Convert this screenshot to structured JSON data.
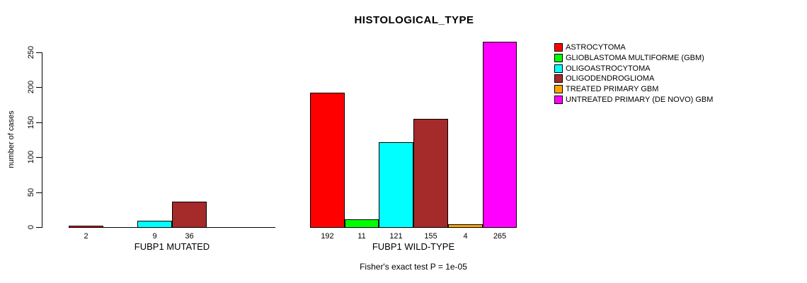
{
  "chart_data": {
    "type": "bar",
    "title": "HISTOLOGICAL_TYPE",
    "ylabel": "number of cases",
    "ylim": [
      0,
      250
    ],
    "yticks": [
      0,
      50,
      100,
      150,
      200,
      250
    ],
    "grid": false,
    "legend_position": "right-outside",
    "categories": [
      "FUBP1 MUTATED",
      "FUBP1 WILD-TYPE"
    ],
    "series": [
      {
        "name": "ASTROCYTOMA",
        "color": "#FF0000",
        "values": [
          2,
          192
        ]
      },
      {
        "name": "GLIOBLASTOMA MULTIFORME (GBM)",
        "color": "#00FF00",
        "values": [
          0,
          11
        ]
      },
      {
        "name": "OLIGOASTROCYTOMA",
        "color": "#00FFFF",
        "values": [
          9,
          121
        ]
      },
      {
        "name": "OLIGODENDROGLIOMA",
        "color": "#A52A2A",
        "values": [
          36,
          155
        ]
      },
      {
        "name": "TREATED PRIMARY GBM",
        "color": "#FFA500",
        "values": [
          0,
          4
        ]
      },
      {
        "name": "UNTREATED PRIMARY (DE NOVO) GBM",
        "color": "#FF00FF",
        "values": [
          0,
          265
        ]
      }
    ],
    "annotation": "Fisher's exact test P = 1e-05"
  }
}
